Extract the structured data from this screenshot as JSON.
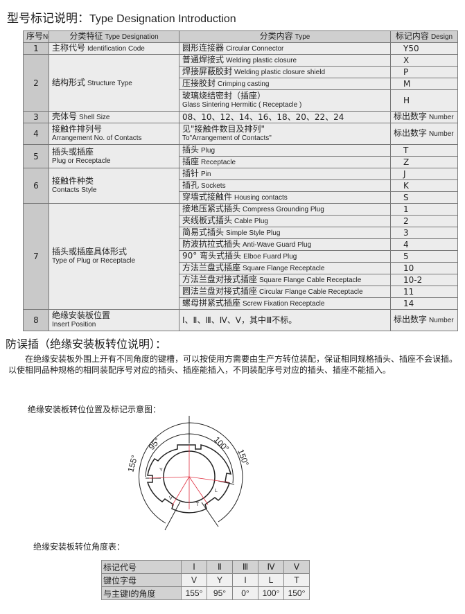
{
  "title": {
    "zh": "型号标记说明：",
    "en": "Type Designation Introduction"
  },
  "table": {
    "headers": [
      {
        "zh": "序号",
        "en": "No."
      },
      {
        "zh": "分类特征",
        "en": "Type Designation"
      },
      {
        "zh": "分类内容",
        "en": "Type"
      },
      {
        "zh": "标记内容",
        "en": "Design"
      }
    ],
    "groups": [
      {
        "no": "1",
        "zh": "主称代号",
        "en": "Identification Code",
        "items": [
          {
            "zh": "圆形连接器",
            "en": "Circular Connector",
            "code": "Y50"
          }
        ]
      },
      {
        "no": "2",
        "zh": "结构形式",
        "en": "Structure Type",
        "items": [
          {
            "zh": "普通焊接式",
            "en": "Welding plastic closure",
            "code": "X"
          },
          {
            "zh": "焊接屏蔽胶封",
            "en": "Welding plastic closure shield",
            "code": "P"
          },
          {
            "zh": "压接胶封",
            "en": "Crimping casting",
            "code": "M"
          },
          {
            "zh": "玻璃烧结密封（插座）",
            "en": "Glass Sintering Hermitic ( Receptacle )",
            "code": "H"
          }
        ]
      },
      {
        "no": "3",
        "zh": "壳体号",
        "en": "Shell Size",
        "items": [
          {
            "zh": "08、10、12、14、16、18、20、22、24",
            "en": "",
            "code": "标出数字",
            "code_en": "Number"
          }
        ]
      },
      {
        "no": "4",
        "zh": "接触件排列号",
        "en": "Arrangement No. of Contacts",
        "items": [
          {
            "zh": "见\"接触件数目及排列\"",
            "en": "To\"Arrangement of Contacts\"",
            "code": "标出数字",
            "code_en": "Number"
          }
        ]
      },
      {
        "no": "5",
        "zh": "插头或插座",
        "en": "Plug or Receptacle",
        "items": [
          {
            "zh": "插头",
            "en": "Plug",
            "code": "T"
          },
          {
            "zh": "插座",
            "en": "Receptacle",
            "code": "Z"
          }
        ]
      },
      {
        "no": "6",
        "zh": "接触件种类",
        "en": "Contacts Style",
        "items": [
          {
            "zh": "插针",
            "en": "Pin",
            "code": "J"
          },
          {
            "zh": "插孔",
            "en": "Sockets",
            "code": "K"
          },
          {
            "zh": "穿墙式接触件",
            "en": "Housing contacts",
            "code": "S"
          }
        ]
      },
      {
        "no": "7",
        "zh": "插头或插座具体形式",
        "en": "Type of Plug or Receptacle",
        "items": [
          {
            "zh": "接地压紧式插头",
            "en": "Compress Grounding Plug",
            "code": "1"
          },
          {
            "zh": "夹线板式插头",
            "en": "Cable Plug",
            "code": "2"
          },
          {
            "zh": "简易式插头",
            "en": "Simple Style Plug",
            "code": "3"
          },
          {
            "zh": "防波抗拉式插头",
            "en": "Anti-Wave Guard Plug",
            "code": "4"
          },
          {
            "zh": "90° 弯头式插头",
            "en": "Elboe Fuard Plug",
            "code": "5"
          },
          {
            "zh": "方法兰盘式插座",
            "en": "Square Flange Receptacle",
            "code": "10"
          },
          {
            "zh": "方法兰盘对接式插座",
            "en": "Square Flange Cable Receptacle",
            "code": "10-2"
          },
          {
            "zh": "圆法兰盘对接式插座",
            "en": "Circular Flange Cable Receptacle",
            "code": "11"
          },
          {
            "zh": "螺母拼紧式插座",
            "en": "Screw Fixation Receptacle",
            "code": "14"
          }
        ]
      },
      {
        "no": "8",
        "zh": "绝缘安装板位置",
        "en": "Insert Position",
        "items": [
          {
            "zh": "Ⅰ、Ⅱ、Ⅲ、Ⅳ、Ⅴ，其中Ⅲ不标。",
            "en": "",
            "code": "标出数字",
            "code_en": "Number"
          }
        ]
      }
    ]
  },
  "section2": {
    "heading": "防误插（绝缘安装板转位说明）：",
    "paragraph": "在绝缘安装板外围上开有不同角度的键槽，可以按使用方需要由生产方转位装配，保证相同规格插头、插座不会误插。以使相同品种规格的相同装配序号对应的插头、插座能插入，不同装配序号对应的插头、插座不能插入。",
    "diagram_caption": "绝缘安装板转位位置及标记示意图：",
    "diagram_labels": {
      "a155": "155°",
      "a95": "95°",
      "a100": "100°",
      "a150": "150°",
      "kI": "I",
      "kY": "Y",
      "kL": "L",
      "kV": "V",
      "kT": "T"
    },
    "angle_table_caption": "绝缘安装板转位角度表：",
    "angle_table": {
      "rows": [
        {
          "label": "标记代号",
          "values": [
            "Ⅰ",
            "Ⅱ",
            "Ⅲ",
            "Ⅳ",
            "Ⅴ"
          ]
        },
        {
          "label": "键位字母",
          "values": [
            "V",
            "Y",
            "I",
            "L",
            "T"
          ]
        },
        {
          "label": "与主键Ⅰ的角度",
          "values": [
            "155°",
            "95°",
            "0°",
            "100°",
            "150°"
          ]
        }
      ]
    }
  }
}
